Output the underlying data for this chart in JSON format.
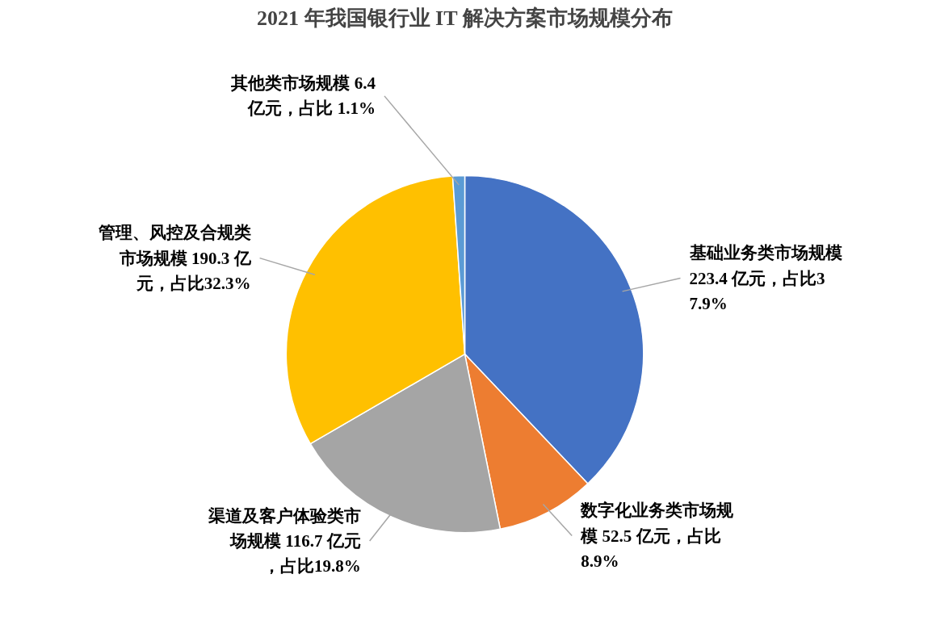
{
  "chart_data": {
    "type": "pie",
    "title": "2021 年我国银行业 IT 解决方案市场规模分布",
    "categories": [
      "基础业务类市场规模 223.4 亿元，占比37.9%",
      "数字化业务类市场规模 52.5 亿元，占比8.9%",
      "渠道及客户体验类市场规模 116.7 亿元，占比19.8%",
      "管理、风控及合规类市场规模 190.3 亿元，占比32.3%",
      "其他类市场规模 6.4 亿元，占比 1.1%"
    ],
    "values": [
      223.4,
      52.5,
      116.7,
      190.3,
      6.4
    ],
    "colors": [
      "#4472c4",
      "#ed7d31",
      "#a5a5a5",
      "#ffc000",
      "#5b9bd5"
    ]
  }
}
